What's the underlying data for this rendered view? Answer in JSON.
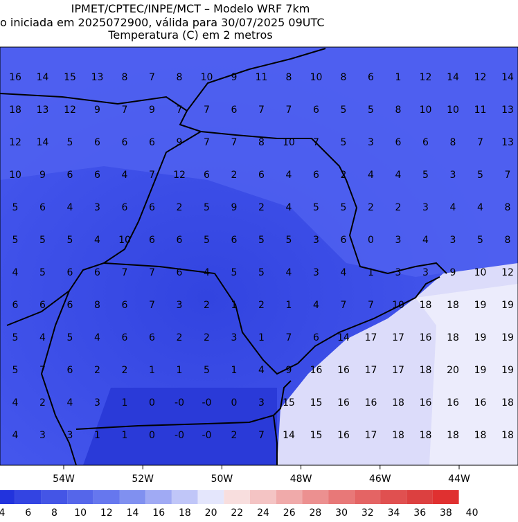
{
  "header": {
    "line1": "IPMET/CPTEC/INPE/MCT – Modelo WRF 7km",
    "line2": "o iniciada em 2025072900, válida para 30/07/2025 09UTC",
    "line3": "Temperatura (C) em 2 metros"
  },
  "map": {
    "rows": [
      [
        "16",
        "14",
        "15",
        "13",
        "8",
        "7",
        "8",
        "10",
        "9",
        "11",
        "8",
        "10",
        "8",
        "6",
        "1",
        "12",
        "14",
        "12",
        "14"
      ],
      [
        "18",
        "13",
        "12",
        "9",
        "7",
        "9",
        "7",
        "7",
        "6",
        "7",
        "7",
        "6",
        "5",
        "5",
        "8",
        "10",
        "10",
        "11",
        "13"
      ],
      [
        "12",
        "14",
        "5",
        "6",
        "6",
        "6",
        "9",
        "7",
        "7",
        "8",
        "10",
        "7",
        "5",
        "3",
        "6",
        "6",
        "8",
        "7",
        "13"
      ],
      [
        "10",
        "9",
        "6",
        "6",
        "4",
        "7",
        "12",
        "6",
        "2",
        "6",
        "4",
        "6",
        "2",
        "4",
        "4",
        "5",
        "3",
        "5",
        "7"
      ],
      [
        "5",
        "6",
        "4",
        "3",
        "6",
        "6",
        "2",
        "5",
        "9",
        "2",
        "4",
        "5",
        "5",
        "2",
        "2",
        "3",
        "4",
        "4",
        "8"
      ],
      [
        "5",
        "5",
        "5",
        "4",
        "10",
        "6",
        "6",
        "5",
        "6",
        "5",
        "5",
        "3",
        "6",
        "0",
        "3",
        "4",
        "3",
        "5",
        "8"
      ],
      [
        "4",
        "5",
        "6",
        "6",
        "7",
        "7",
        "6",
        "4",
        "5",
        "5",
        "4",
        "3",
        "4",
        "1",
        "3",
        "3",
        "9",
        "10",
        "12"
      ],
      [
        "6",
        "6",
        "6",
        "8",
        "6",
        "7",
        "3",
        "2",
        "1",
        "2",
        "1",
        "4",
        "7",
        "7",
        "10",
        "18",
        "18",
        "19",
        "19"
      ],
      [
        "5",
        "4",
        "5",
        "4",
        "6",
        "6",
        "2",
        "2",
        "3",
        "1",
        "7",
        "6",
        "14",
        "17",
        "17",
        "16",
        "18",
        "19",
        "19"
      ],
      [
        "5",
        "7",
        "6",
        "2",
        "2",
        "1",
        "1",
        "5",
        "1",
        "4",
        "9",
        "16",
        "16",
        "17",
        "17",
        "18",
        "20",
        "19",
        "19"
      ],
      [
        "4",
        "2",
        "4",
        "3",
        "1",
        "0",
        "-0",
        "-0",
        "0",
        "3",
        "15",
        "15",
        "16",
        "16",
        "18",
        "16",
        "16",
        "16",
        "18"
      ],
      [
        "4",
        "3",
        "3",
        "1",
        "1",
        "0",
        "-0",
        "-0",
        "2",
        "7",
        "14",
        "15",
        "16",
        "17",
        "18",
        "18",
        "18",
        "18",
        "18"
      ]
    ],
    "x_labels": [
      "54W",
      "52W",
      "50W",
      "48W",
      "46W",
      "44W"
    ]
  },
  "colorbar": {
    "labels": [
      4,
      6,
      8,
      10,
      12,
      14,
      16,
      18,
      20,
      22,
      24,
      26,
      28,
      30,
      32,
      34,
      36,
      38,
      40
    ]
  }
}
